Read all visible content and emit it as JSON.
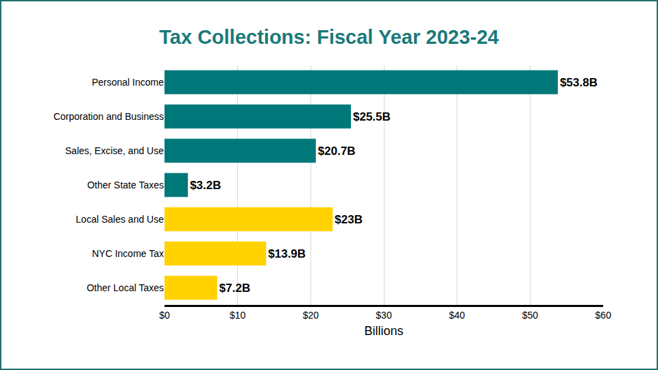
{
  "chart_data": {
    "type": "bar",
    "title": "Tax Collections: Fiscal Year 2023-24",
    "orientation": "horizontal",
    "xlabel": "Billions",
    "categories": [
      "Personal Income",
      "Corporation and Business",
      "Sales, Excise, and Use",
      "Other State Taxes",
      "Local Sales and Use",
      "NYC Income Tax",
      "Other Local Taxes"
    ],
    "values": [
      53.8,
      25.5,
      20.7,
      3.2,
      23,
      13.9,
      7.2
    ],
    "value_labels": [
      "$53.8B",
      "$25.5B",
      "$20.7B",
      "$3.2B",
      "$23B",
      "$13.9B",
      "$7.2B"
    ],
    "colors": [
      "#00787a",
      "#00787a",
      "#00787a",
      "#00787a",
      "#ffd200",
      "#ffd200",
      "#ffd200"
    ],
    "xlim": [
      0,
      60
    ],
    "xticks": [
      {
        "value": 0,
        "label": "$0"
      },
      {
        "value": 10,
        "label": "$10"
      },
      {
        "value": 20,
        "label": "$20"
      },
      {
        "value": 30,
        "label": "$30"
      },
      {
        "value": 40,
        "label": "$40"
      },
      {
        "value": 50,
        "label": "$50"
      },
      {
        "value": 60,
        "label": "$60"
      }
    ],
    "grid": true,
    "data_labels": true
  }
}
